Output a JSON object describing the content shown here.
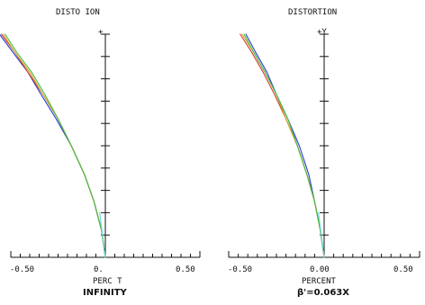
{
  "chart_data": [
    {
      "type": "line",
      "title": "DISTO   ION",
      "top_marker": "+",
      "xlabel": "PERC   T",
      "caption": "INFINITY",
      "x_ticks": [
        "-0.50",
        "0.",
        "0.50"
      ],
      "xlim": [
        -0.5,
        0.5
      ],
      "ylim": [
        0,
        1
      ],
      "grid": false,
      "series": [
        {
          "color": "#2b39d6",
          "x": [
            -0.56,
            -0.49,
            -0.41,
            -0.34,
            -0.26,
            -0.18,
            -0.11,
            -0.06,
            -0.02,
            0.0
          ],
          "y": [
            1.0,
            0.92,
            0.83,
            0.73,
            0.62,
            0.5,
            0.37,
            0.25,
            0.12,
            0.0
          ]
        },
        {
          "color": "#d63a2b",
          "x": [
            -0.55,
            -0.48,
            -0.41,
            -0.33,
            -0.25,
            -0.18,
            -0.11,
            -0.06,
            -0.02,
            0.0
          ],
          "y": [
            1.0,
            0.92,
            0.83,
            0.73,
            0.62,
            0.5,
            0.37,
            0.25,
            0.12,
            0.0
          ]
        },
        {
          "color": "#d6a12b",
          "x": [
            -0.54,
            -0.48,
            -0.4,
            -0.33,
            -0.25,
            -0.18,
            -0.11,
            -0.06,
            -0.02,
            0.0
          ],
          "y": [
            1.0,
            0.92,
            0.83,
            0.73,
            0.62,
            0.5,
            0.37,
            0.25,
            0.12,
            0.0
          ]
        },
        {
          "color": "#3fbf3f",
          "x": [
            -0.53,
            -0.47,
            -0.39,
            -0.32,
            -0.25,
            -0.18,
            -0.11,
            -0.06,
            -0.02,
            0.0
          ],
          "y": [
            1.0,
            0.92,
            0.83,
            0.73,
            0.62,
            0.5,
            0.37,
            0.25,
            0.12,
            0.0
          ]
        },
        {
          "color": "#5fd6d6",
          "x": [
            -0.03,
            -0.015,
            0.0
          ],
          "y": [
            0.2,
            0.1,
            0.0
          ]
        }
      ]
    },
    {
      "type": "line",
      "title": "DISTORTION",
      "top_marker": "+Y",
      "xlabel": "PERCENT",
      "caption": "β'=0.063X",
      "x_ticks": [
        "-0.50",
        "0.00",
        "0.50"
      ],
      "xlim": [
        -0.5,
        0.5
      ],
      "ylim": [
        0,
        1
      ],
      "grid": false,
      "series": [
        {
          "color": "#2b39d6",
          "x": [
            -0.41,
            -0.36,
            -0.3,
            -0.25,
            -0.19,
            -0.13,
            -0.08,
            -0.05,
            -0.02,
            0.0
          ],
          "y": [
            1.0,
            0.92,
            0.83,
            0.73,
            0.62,
            0.5,
            0.37,
            0.25,
            0.12,
            0.0
          ]
        },
        {
          "color": "#d63a2b",
          "x": [
            -0.44,
            -0.38,
            -0.32,
            -0.26,
            -0.2,
            -0.14,
            -0.09,
            -0.05,
            -0.02,
            0.0
          ],
          "y": [
            1.0,
            0.92,
            0.83,
            0.73,
            0.62,
            0.5,
            0.37,
            0.25,
            0.12,
            0.0
          ]
        },
        {
          "color": "#d6a12b",
          "x": [
            -0.43,
            -0.37,
            -0.31,
            -0.25,
            -0.2,
            -0.14,
            -0.09,
            -0.05,
            -0.02,
            0.0
          ],
          "y": [
            1.0,
            0.92,
            0.83,
            0.73,
            0.62,
            0.5,
            0.37,
            0.25,
            0.12,
            0.0
          ]
        },
        {
          "color": "#3fbf3f",
          "x": [
            -0.42,
            -0.37,
            -0.31,
            -0.25,
            -0.19,
            -0.14,
            -0.09,
            -0.05,
            -0.02,
            0.0
          ],
          "y": [
            1.0,
            0.92,
            0.83,
            0.73,
            0.62,
            0.5,
            0.37,
            0.25,
            0.12,
            0.0
          ]
        },
        {
          "color": "#5fd6d6",
          "x": [
            -0.03,
            -0.015,
            0.0
          ],
          "y": [
            0.2,
            0.1,
            0.0
          ]
        }
      ]
    }
  ]
}
